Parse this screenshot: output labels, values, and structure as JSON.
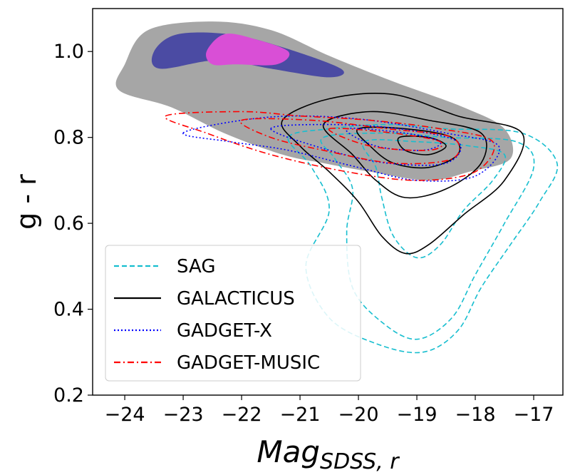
{
  "chart_data": {
    "type": "contour",
    "xlabel_main": "Mag",
    "xlabel_sub": "SDSS, r",
    "ylabel": "g - r",
    "xlim": [
      -24.55,
      -16.5
    ],
    "ylim": [
      0.2,
      1.1
    ],
    "xticks": [
      -24,
      -23,
      -22,
      -21,
      -20,
      -19,
      -18,
      -17
    ],
    "xtick_labels": [
      "−24",
      "−23",
      "−22",
      "−21",
      "−20",
      "−19",
      "−18",
      "−17"
    ],
    "yticks": [
      0.2,
      0.4,
      0.6,
      0.8,
      1.0
    ],
    "ytick_labels": [
      "0.2",
      "0.4",
      "0.6",
      "0.8",
      "1.0"
    ],
    "grid": false,
    "legend_position": "lower-left",
    "background_density": {
      "levels": [
        {
          "level": "outer",
          "color": "#a6a6a6"
        },
        {
          "level": "middle",
          "color": "#4b4ba3"
        },
        {
          "level": "inner",
          "color": "#d94fd6"
        }
      ],
      "outer_region": [
        [
          -24,
          0.97
        ],
        [
          -23.6,
          1.05
        ],
        [
          -22.5,
          1.07
        ],
        [
          -21.5,
          1.05
        ],
        [
          -20.5,
          0.99
        ],
        [
          -19.4,
          0.93
        ],
        [
          -18.2,
          0.87
        ],
        [
          -17.5,
          0.82
        ],
        [
          -17.4,
          0.75
        ],
        [
          -18.1,
          0.72
        ],
        [
          -18.8,
          0.7
        ],
        [
          -19.8,
          0.72
        ],
        [
          -20.6,
          0.74
        ],
        [
          -21.3,
          0.76
        ],
        [
          -22.3,
          0.81
        ],
        [
          -23.2,
          0.87
        ],
        [
          -24.1,
          0.91
        ]
      ],
      "middle_region": [
        [
          -23.5,
          1.0
        ],
        [
          -23.1,
          1.04
        ],
        [
          -22.2,
          1.04
        ],
        [
          -21.3,
          1.01
        ],
        [
          -20.3,
          0.96
        ],
        [
          -20.5,
          0.94
        ],
        [
          -21.5,
          0.96
        ],
        [
          -22.4,
          0.98
        ],
        [
          -23.4,
          0.96
        ]
      ],
      "inner_region": [
        [
          -22.6,
          1.0
        ],
        [
          -22.3,
          1.04
        ],
        [
          -21.8,
          1.03
        ],
        [
          -21.2,
          1.0
        ],
        [
          -21.4,
          0.97
        ],
        [
          -22.1,
          0.97
        ],
        [
          -22.5,
          0.97
        ]
      ]
    },
    "series": [
      {
        "name": "SAG",
        "color": "#17becf",
        "style": "dashed",
        "contours": [
          [
            [
              -21.2,
              0.8
            ],
            [
              -20.5,
              0.82
            ],
            [
              -19.5,
              0.83
            ],
            [
              -18.5,
              0.82
            ],
            [
              -17.2,
              0.81
            ],
            [
              -16.6,
              0.74
            ],
            [
              -16.9,
              0.65
            ],
            [
              -17.4,
              0.55
            ],
            [
              -17.9,
              0.45
            ],
            [
              -18.3,
              0.35
            ],
            [
              -18.9,
              0.3
            ],
            [
              -19.7,
              0.32
            ],
            [
              -20.5,
              0.38
            ],
            [
              -20.9,
              0.5
            ],
            [
              -20.5,
              0.63
            ],
            [
              -20.8,
              0.73
            ]
          ],
          [
            [
              -20.6,
              0.8
            ],
            [
              -19.5,
              0.81
            ],
            [
              -18.5,
              0.8
            ],
            [
              -17.3,
              0.79
            ],
            [
              -17.0,
              0.73
            ],
            [
              -17.5,
              0.6
            ],
            [
              -18.0,
              0.48
            ],
            [
              -18.4,
              0.38
            ],
            [
              -19.0,
              0.33
            ],
            [
              -19.6,
              0.37
            ],
            [
              -20.1,
              0.45
            ],
            [
              -20.2,
              0.58
            ],
            [
              -20.1,
              0.68
            ],
            [
              -20.4,
              0.75
            ]
          ],
          [
            [
              -19.9,
              0.79
            ],
            [
              -19.0,
              0.79
            ],
            [
              -18.1,
              0.78
            ],
            [
              -17.5,
              0.76
            ],
            [
              -17.7,
              0.7
            ],
            [
              -18.2,
              0.63
            ],
            [
              -18.6,
              0.55
            ],
            [
              -19.0,
              0.52
            ],
            [
              -19.4,
              0.57
            ],
            [
              -19.6,
              0.66
            ],
            [
              -19.7,
              0.73
            ]
          ]
        ]
      },
      {
        "name": "GALACTICUS",
        "color": "#000000",
        "style": "solid",
        "contours": [
          [
            [
              -21.3,
              0.84
            ],
            [
              -20.5,
              0.89
            ],
            [
              -19.4,
              0.9
            ],
            [
              -18.3,
              0.85
            ],
            [
              -17.2,
              0.81
            ],
            [
              -17.5,
              0.7
            ],
            [
              -18.2,
              0.62
            ],
            [
              -18.8,
              0.55
            ],
            [
              -19.2,
              0.53
            ],
            [
              -19.6,
              0.57
            ],
            [
              -20.0,
              0.65
            ],
            [
              -20.5,
              0.72
            ],
            [
              -21.0,
              0.78
            ]
          ],
          [
            [
              -20.6,
              0.83
            ],
            [
              -19.8,
              0.86
            ],
            [
              -18.8,
              0.84
            ],
            [
              -17.9,
              0.81
            ],
            [
              -17.9,
              0.74
            ],
            [
              -18.5,
              0.68
            ],
            [
              -19.2,
              0.66
            ],
            [
              -19.7,
              0.7
            ],
            [
              -20.1,
              0.76
            ]
          ],
          [
            [
              -20.0,
              0.82
            ],
            [
              -19.2,
              0.82
            ],
            [
              -18.4,
              0.8
            ],
            [
              -18.3,
              0.76
            ],
            [
              -18.8,
              0.73
            ],
            [
              -19.4,
              0.74
            ],
            [
              -19.8,
              0.78
            ]
          ],
          [
            [
              -19.3,
              0.8
            ],
            [
              -18.8,
              0.8
            ],
            [
              -18.5,
              0.78
            ],
            [
              -18.8,
              0.76
            ],
            [
              -19.2,
              0.77
            ]
          ]
        ]
      },
      {
        "name": "GADGET-X",
        "color": "#0000ff",
        "style": "dotted",
        "contours": [
          [
            [
              -23.0,
              0.81
            ],
            [
              -22.0,
              0.84
            ],
            [
              -21.0,
              0.85
            ],
            [
              -19.8,
              0.84
            ],
            [
              -18.5,
              0.81
            ],
            [
              -17.6,
              0.78
            ],
            [
              -18.0,
              0.71
            ],
            [
              -19.0,
              0.7
            ],
            [
              -20.0,
              0.73
            ],
            [
              -21.2,
              0.77
            ],
            [
              -22.2,
              0.79
            ]
          ],
          [
            [
              -21.5,
              0.82
            ],
            [
              -20.5,
              0.83
            ],
            [
              -19.3,
              0.82
            ],
            [
              -18.3,
              0.79
            ],
            [
              -18.5,
              0.74
            ],
            [
              -19.5,
              0.74
            ],
            [
              -20.5,
              0.77
            ]
          ],
          [
            [
              -20.2,
              0.82
            ],
            [
              -19.2,
              0.81
            ],
            [
              -18.6,
              0.79
            ],
            [
              -18.9,
              0.77
            ],
            [
              -19.7,
              0.78
            ]
          ]
        ]
      },
      {
        "name": "GADGET-MUSIC",
        "color": "#ff0000",
        "style": "dashdot",
        "contours": [
          [
            [
              -23.3,
              0.85
            ],
            [
              -22.0,
              0.86
            ],
            [
              -21.0,
              0.85
            ],
            [
              -19.8,
              0.84
            ],
            [
              -18.6,
              0.82
            ],
            [
              -17.7,
              0.79
            ],
            [
              -18.0,
              0.72
            ],
            [
              -19.0,
              0.7
            ],
            [
              -20.2,
              0.72
            ],
            [
              -21.5,
              0.76
            ],
            [
              -22.6,
              0.81
            ]
          ],
          [
            [
              -22.0,
              0.84
            ],
            [
              -20.8,
              0.84
            ],
            [
              -19.5,
              0.82
            ],
            [
              -18.4,
              0.8
            ],
            [
              -18.4,
              0.75
            ],
            [
              -19.4,
              0.74
            ],
            [
              -20.6,
              0.77
            ],
            [
              -21.5,
              0.8
            ]
          ],
          [
            [
              -20.5,
              0.82
            ],
            [
              -19.4,
              0.81
            ],
            [
              -18.6,
              0.79
            ],
            [
              -18.8,
              0.77
            ],
            [
              -19.8,
              0.78
            ]
          ]
        ]
      }
    ]
  }
}
